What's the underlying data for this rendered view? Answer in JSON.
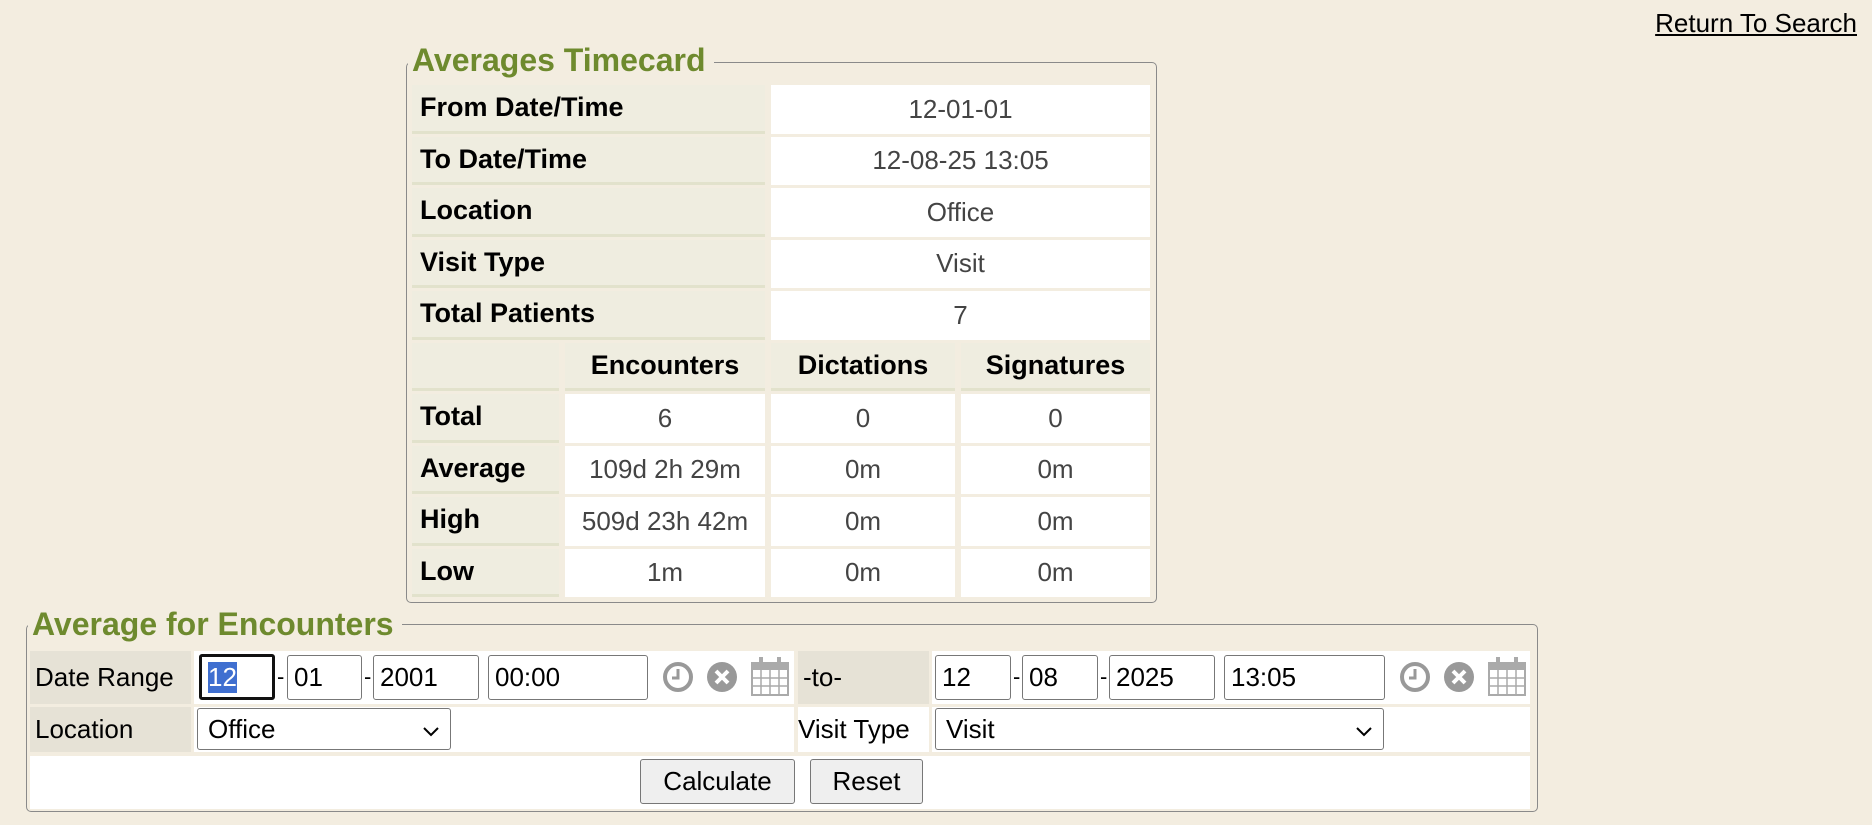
{
  "return_link": "Return To Search",
  "timecard": {
    "title": "Averages Timecard",
    "rows": [
      {
        "label": "From Date/Time",
        "value": "12-01-01"
      },
      {
        "label": "To Date/Time",
        "value": "12-08-25 13:05"
      },
      {
        "label": "Location",
        "value": "Office"
      },
      {
        "label": "Visit Type",
        "value": "Visit"
      },
      {
        "label": "Total Patients",
        "value": "7"
      }
    ],
    "columns": [
      "Encounters",
      "Dictations",
      "Signatures"
    ],
    "stats": [
      {
        "label": "Total",
        "values": [
          "6",
          "0",
          "0"
        ]
      },
      {
        "label": "Average",
        "values": [
          "109d 2h 29m",
          "0m",
          "0m"
        ]
      },
      {
        "label": "High",
        "values": [
          "509d 23h 42m",
          "0m",
          "0m"
        ]
      },
      {
        "label": "Low",
        "values": [
          "1m",
          "0m",
          "0m"
        ]
      }
    ]
  },
  "form": {
    "title": "Average for Encounters",
    "date_range_label": "Date Range",
    "from": {
      "month": "12",
      "day": "01",
      "year": "2001",
      "time": "00:00"
    },
    "to_label": "-to-",
    "to": {
      "month": "12",
      "day": "08",
      "year": "2025",
      "time": "13:05"
    },
    "separator": "-",
    "location_label": "Location",
    "location_value": "Office",
    "visit_type_label": "Visit Type",
    "visit_type_value": "Visit",
    "calculate": "Calculate",
    "reset": "Reset"
  },
  "colors": {
    "legend": "#6e8a2e",
    "background": "#f3ede0",
    "selection": "#3f6fd0"
  }
}
